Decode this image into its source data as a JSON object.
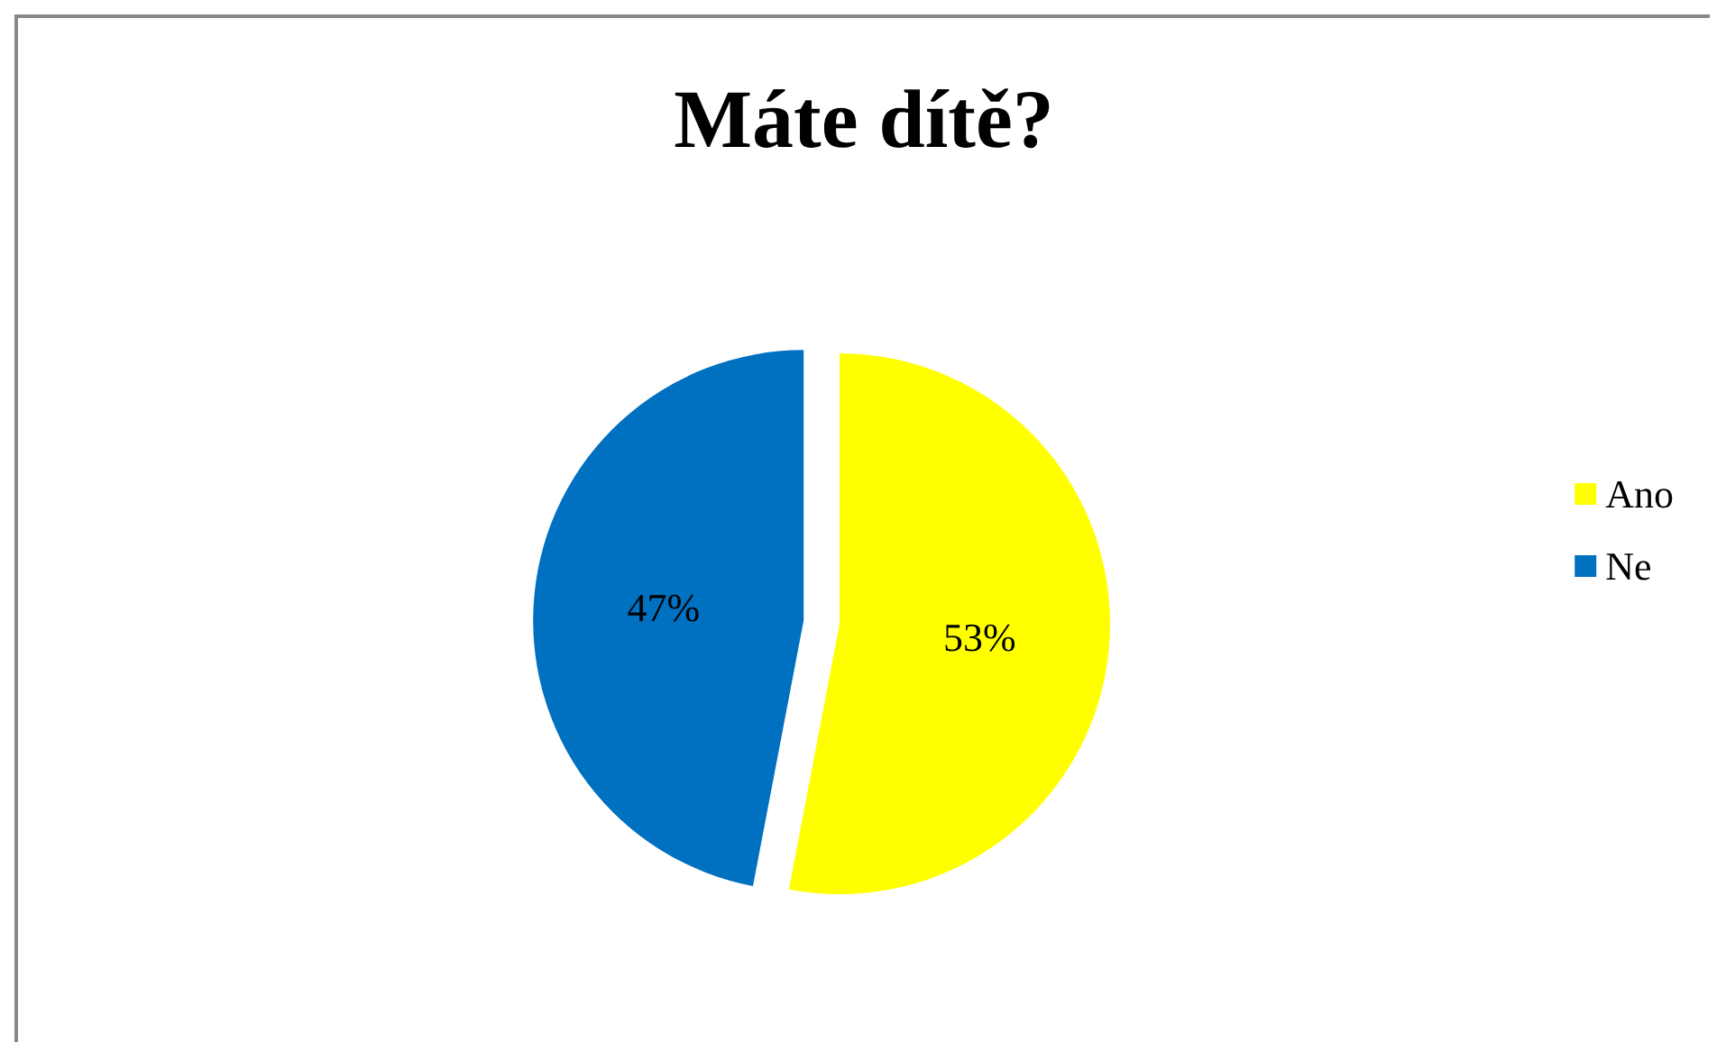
{
  "chart_data": {
    "type": "pie",
    "title": "Máte dítě?",
    "categories": [
      "Ano",
      "Ne"
    ],
    "values": [
      53,
      47
    ],
    "colors": [
      "#ffff00",
      "#0070c0"
    ],
    "legend": "right",
    "value_labels": [
      "53%",
      "47%"
    ]
  }
}
